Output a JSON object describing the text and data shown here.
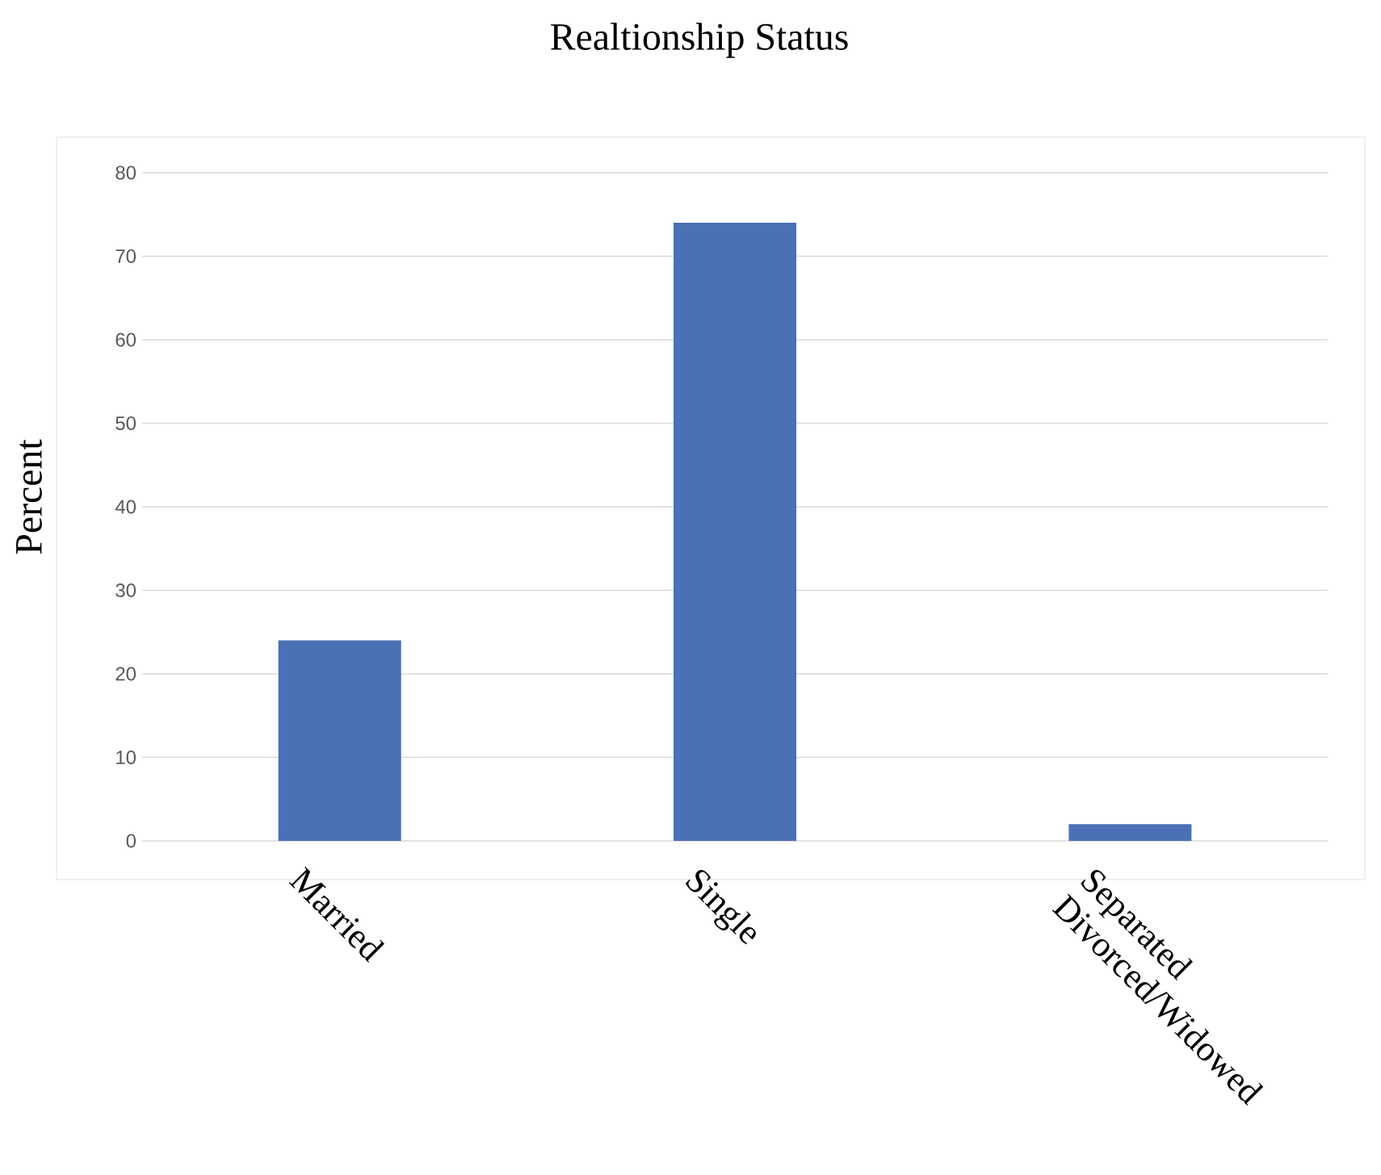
{
  "chart_data": {
    "type": "bar",
    "title": "Realtionship Status",
    "ylabel": "Percent",
    "categories": [
      "Married",
      "Single",
      "Separated Divorced/Widowed"
    ],
    "values": [
      24,
      74,
      2
    ],
    "color": "#4a70b5",
    "ylim": [
      0,
      80
    ],
    "yticks": [
      0,
      10,
      20,
      30,
      40,
      50,
      60,
      70,
      80
    ],
    "grid": "y"
  }
}
